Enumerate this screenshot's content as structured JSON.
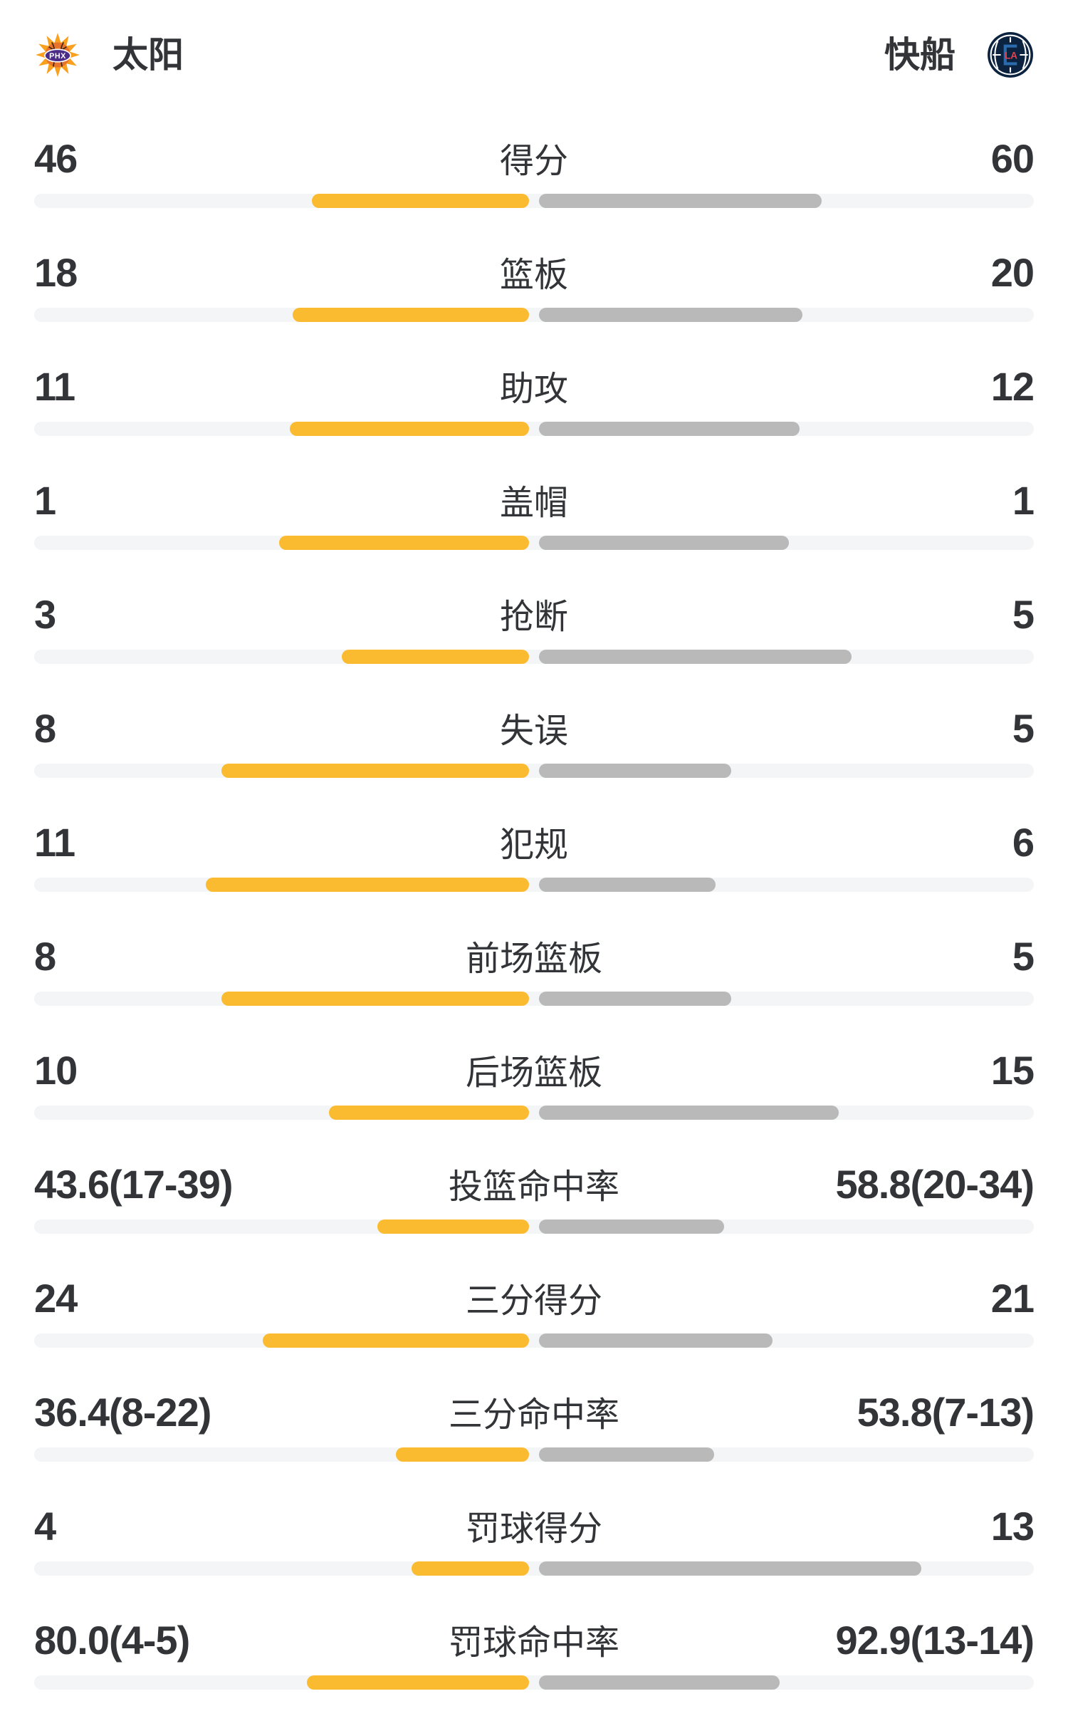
{
  "header": {
    "home": {
      "name": "太阳",
      "abbr": "PHX"
    },
    "away": {
      "name": "快船",
      "abbr": "LAC"
    }
  },
  "colors": {
    "background": "#FFFFFF",
    "text": "#323438",
    "home_bar": "#FBBB31",
    "away_bar": "#B9B9B9",
    "track": "#F4F5F7",
    "suns_burst": "#F9A11E",
    "suns_ball": "#E8732A",
    "suns_seam": "#3A2417",
    "suns_purple": "#4B2D87",
    "clippers_navy": "#0C2340",
    "clippers_blue": "#2A6BAD",
    "clippers_red": "#E0434F",
    "logo_white": "#FFFFFF"
  },
  "chart_data": {
    "type": "bar",
    "layout": "paired-horizontal-comparison",
    "legend_position": "top",
    "series": [
      {
        "name": "太阳",
        "color": "#FBBB31",
        "side": "left"
      },
      {
        "name": "快船",
        "color": "#B9B9B9",
        "side": "right"
      }
    ],
    "categories": [
      "得分",
      "篮板",
      "助攻",
      "盖帽",
      "抢断",
      "失误",
      "犯规",
      "前场篮板",
      "后场篮板",
      "投篮命中率",
      "三分得分",
      "三分命中率",
      "罚球得分",
      "罚球命中率"
    ],
    "rows": [
      {
        "label": "得分",
        "home_display": "46",
        "away_display": "60",
        "home": 46,
        "away": 60,
        "kind": "count"
      },
      {
        "label": "篮板",
        "home_display": "18",
        "away_display": "20",
        "home": 18,
        "away": 20,
        "kind": "count"
      },
      {
        "label": "助攻",
        "home_display": "11",
        "away_display": "12",
        "home": 11,
        "away": 12,
        "kind": "count"
      },
      {
        "label": "盖帽",
        "home_display": "1",
        "away_display": "1",
        "home": 1,
        "away": 1,
        "kind": "count"
      },
      {
        "label": "抢断",
        "home_display": "3",
        "away_display": "5",
        "home": 3,
        "away": 5,
        "kind": "count"
      },
      {
        "label": "失误",
        "home_display": "8",
        "away_display": "5",
        "home": 8,
        "away": 5,
        "kind": "count"
      },
      {
        "label": "犯规",
        "home_display": "11",
        "away_display": "6",
        "home": 11,
        "away": 6,
        "kind": "count"
      },
      {
        "label": "前场篮板",
        "home_display": "8",
        "away_display": "5",
        "home": 8,
        "away": 5,
        "kind": "count"
      },
      {
        "label": "后场篮板",
        "home_display": "10",
        "away_display": "15",
        "home": 10,
        "away": 15,
        "kind": "count"
      },
      {
        "label": "投篮命中率",
        "home_display": "43.6(17-39)",
        "away_display": "58.8(20-34)",
        "home": 43.6,
        "away": 58.8,
        "kind": "percent"
      },
      {
        "label": "三分得分",
        "home_display": "24",
        "away_display": "21",
        "home": 24,
        "away": 21,
        "kind": "count"
      },
      {
        "label": "三分命中率",
        "home_display": "36.4(8-22)",
        "away_display": "53.8(7-13)",
        "home": 36.4,
        "away": 53.8,
        "kind": "percent"
      },
      {
        "label": "罚球得分",
        "home_display": "4",
        "away_display": "13",
        "home": 4,
        "away": 13,
        "kind": "count"
      },
      {
        "label": "罚球命中率",
        "home_display": "80.0(4-5)",
        "away_display": "92.9(13-14)",
        "home": 80.0,
        "away": 92.9,
        "kind": "percent"
      }
    ]
  }
}
